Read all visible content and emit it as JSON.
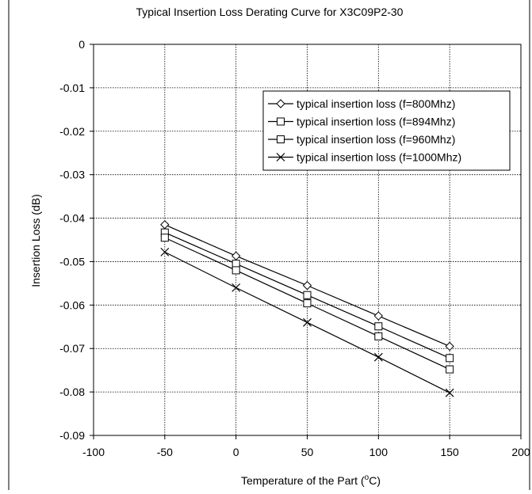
{
  "chart_data": {
    "type": "line",
    "title": "Typical Insertion Loss Derating Curve for X3C09P2-30",
    "xlabel": "Temperature of the Part (",
    "xlabel_sup": "o",
    "xlabel_suffix": "C)",
    "ylabel": "Insertion Loss (dB)",
    "xlim": [
      -100,
      200
    ],
    "ylim": [
      -0.09,
      0
    ],
    "xticks": [
      -100,
      -50,
      0,
      50,
      100,
      150,
      200
    ],
    "yticks": [
      0,
      -0.01,
      -0.02,
      -0.03,
      -0.04,
      -0.05,
      -0.06,
      -0.07,
      -0.08,
      -0.09
    ],
    "xtick_labels": [
      "-100",
      "-50",
      "0",
      "50",
      "100",
      "150",
      "200"
    ],
    "ytick_labels": [
      "0",
      "-0.01",
      "-0.02",
      "-0.03",
      "-0.04",
      "-0.05",
      "-0.06",
      "-0.07",
      "-0.08",
      "-0.09"
    ],
    "grid": true,
    "legend_position": "top-right",
    "x": [
      -50,
      0,
      50,
      100,
      150
    ],
    "series": [
      {
        "name": "typical insertion loss (f=800Mhz)",
        "marker": "diamond",
        "values": [
          -0.0415,
          -0.0487,
          -0.0555,
          -0.0625,
          -0.0695
        ]
      },
      {
        "name": "typical insertion loss (f=894Mhz)",
        "marker": "square",
        "values": [
          -0.0433,
          -0.0505,
          -0.0577,
          -0.0649,
          -0.0722
        ]
      },
      {
        "name": "typical insertion loss (f=960Mhz)",
        "marker": "square",
        "values": [
          -0.0445,
          -0.052,
          -0.0596,
          -0.0672,
          -0.0748
        ]
      },
      {
        "name": "typical insertion loss (f=1000Mhz)",
        "marker": "x",
        "values": [
          -0.0478,
          -0.056,
          -0.064,
          -0.072,
          -0.0802
        ]
      }
    ]
  }
}
